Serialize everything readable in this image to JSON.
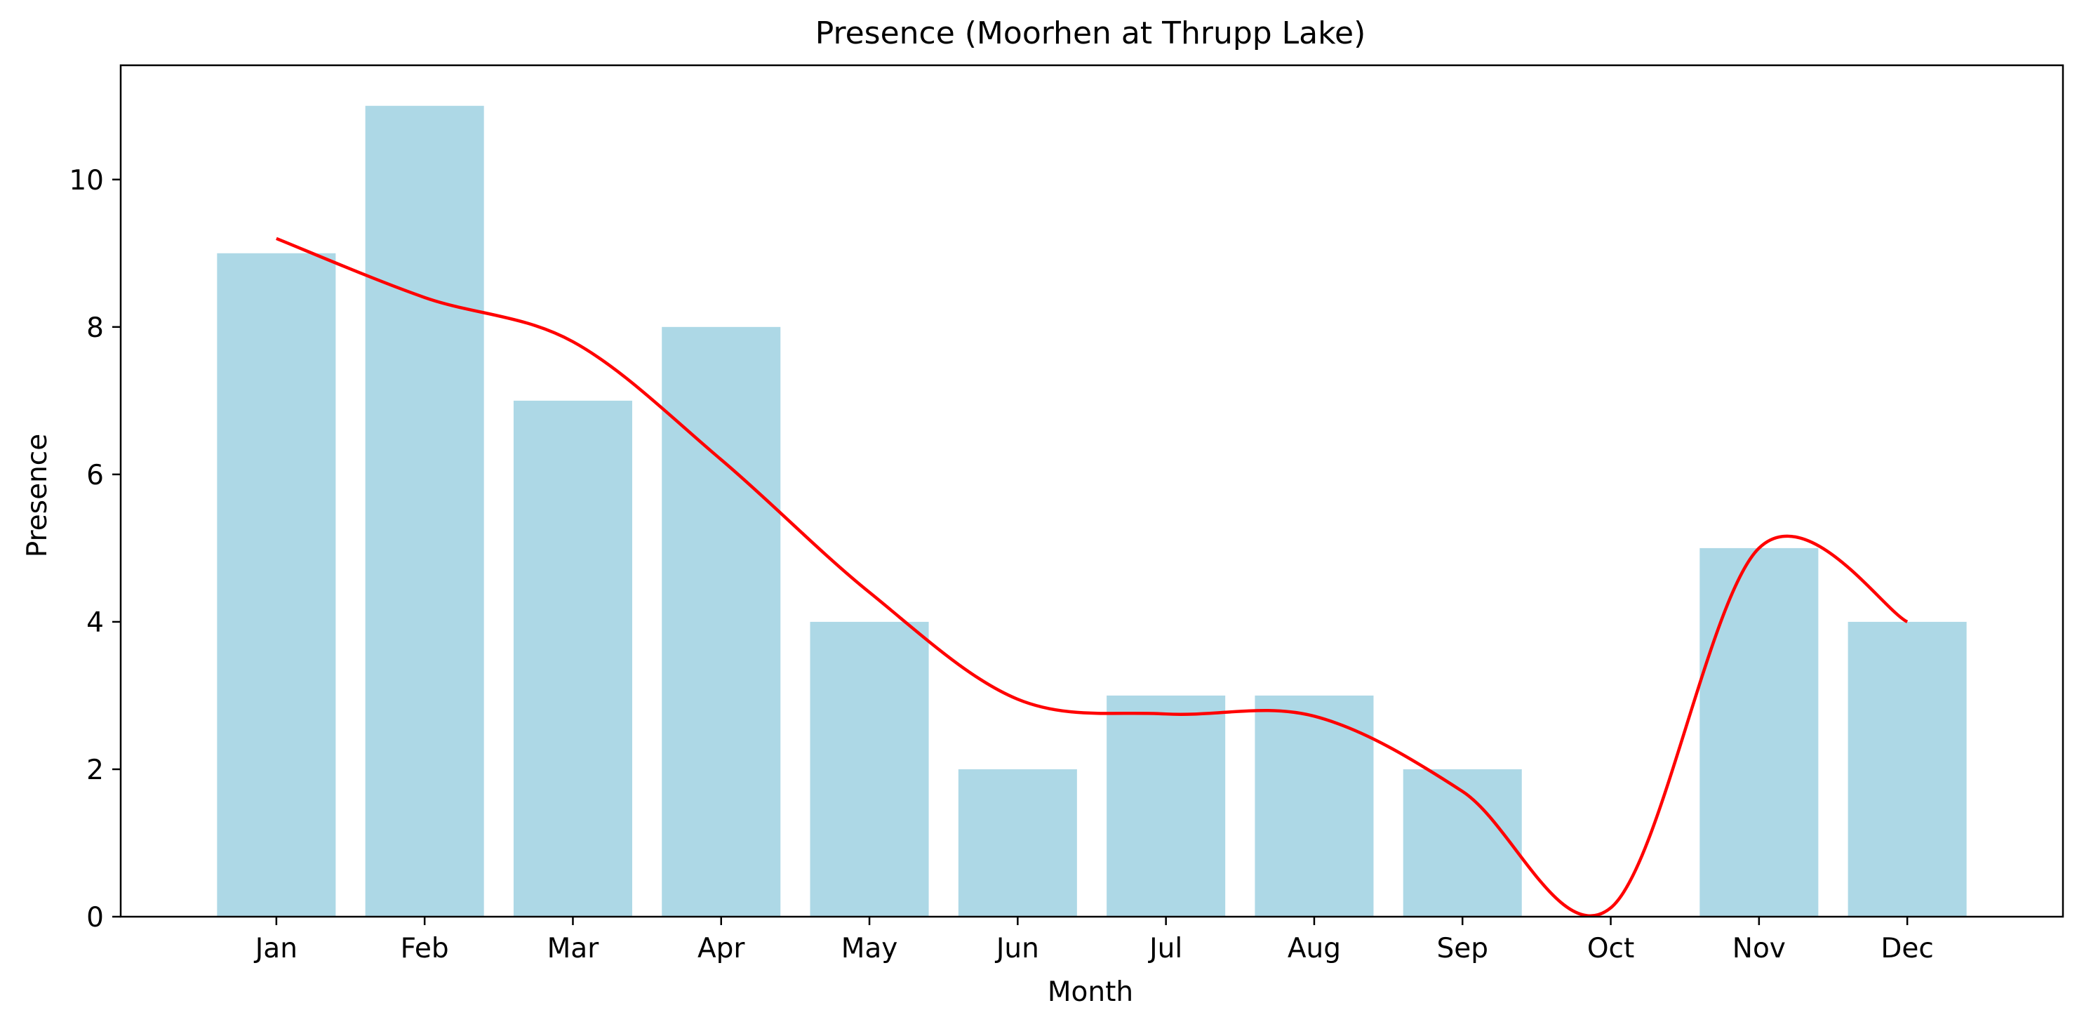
{
  "chart_data": {
    "type": "bar",
    "title": "Presence (Moorhen at Thrupp Lake)",
    "xlabel": "Month",
    "ylabel": "Presence",
    "categories": [
      "Jan",
      "Feb",
      "Mar",
      "Apr",
      "May",
      "Jun",
      "Jul",
      "Aug",
      "Sep",
      "Oct",
      "Nov",
      "Dec"
    ],
    "values": [
      9,
      11,
      7,
      8,
      4,
      2,
      3,
      3,
      2,
      0,
      5,
      4
    ],
    "ylim": [
      0,
      11.55
    ],
    "yticks": [
      0,
      2,
      4,
      6,
      8,
      10
    ],
    "grid": false,
    "bar_color": "#add8e6",
    "trend_line": {
      "color": "#ff0000",
      "points": [
        {
          "x": "Jan",
          "y": 9.2
        },
        {
          "x": "Feb",
          "y": 8.4
        },
        {
          "x": "Mar",
          "y": 7.8
        },
        {
          "x": "Apr",
          "y": 6.2
        },
        {
          "x": "May",
          "y": 4.4
        },
        {
          "x": "Jun",
          "y": 2.95
        },
        {
          "x": "Jul",
          "y": 2.75
        },
        {
          "x": "Aug",
          "y": 2.72
        },
        {
          "x": "Sep",
          "y": 1.7
        },
        {
          "x": "Oct",
          "y": 0.12
        },
        {
          "x": "Nov",
          "y": 5.0
        },
        {
          "x": "Dec",
          "y": 4.0
        }
      ]
    }
  }
}
